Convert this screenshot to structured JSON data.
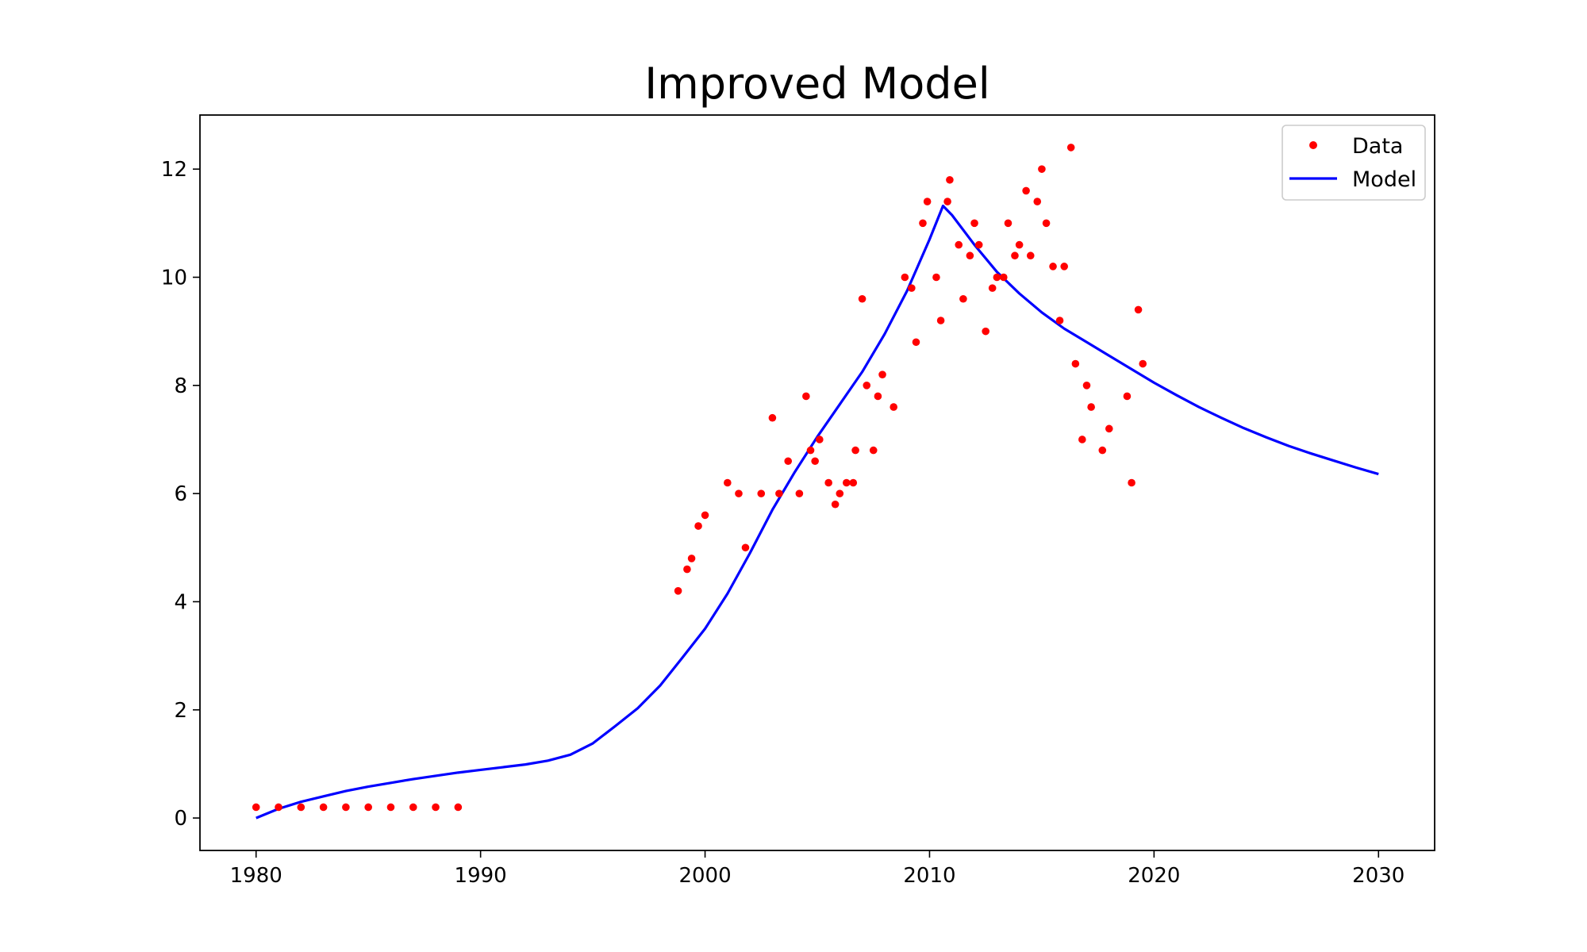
{
  "chart_data": {
    "type": "scatter",
    "title": "Improved Model",
    "xlabel": "",
    "ylabel": "",
    "xlim": [
      1977.5,
      2032.5
    ],
    "ylim": [
      -0.6,
      13.0
    ],
    "xticks": [
      1980,
      1990,
      2000,
      2010,
      2020,
      2030
    ],
    "yticks": [
      0,
      2,
      4,
      6,
      8,
      10,
      12
    ],
    "grid": false,
    "legend_position": "top-right",
    "colors": {
      "data": "#ff0000",
      "model": "#0000ff"
    },
    "series": [
      {
        "name": "Data",
        "kind": "scatter",
        "points": [
          [
            1980,
            0.2
          ],
          [
            1981,
            0.2
          ],
          [
            1982,
            0.2
          ],
          [
            1983,
            0.2
          ],
          [
            1984,
            0.2
          ],
          [
            1985,
            0.2
          ],
          [
            1986,
            0.2
          ],
          [
            1987,
            0.2
          ],
          [
            1988,
            0.2
          ],
          [
            1989,
            0.2
          ],
          [
            1998.8,
            4.2
          ],
          [
            1999.2,
            4.6
          ],
          [
            1999.4,
            4.8
          ],
          [
            1999.7,
            5.4
          ],
          [
            2000.0,
            5.6
          ],
          [
            2001.0,
            6.2
          ],
          [
            2001.5,
            6.0
          ],
          [
            2001.8,
            5.0
          ],
          [
            2002.5,
            6.0
          ],
          [
            2003.0,
            7.4
          ],
          [
            2003.3,
            6.0
          ],
          [
            2003.7,
            6.6
          ],
          [
            2004.2,
            6.0
          ],
          [
            2004.5,
            7.8
          ],
          [
            2004.7,
            6.8
          ],
          [
            2004.9,
            6.6
          ],
          [
            2005.1,
            7.0
          ],
          [
            2005.5,
            6.2
          ],
          [
            2005.8,
            5.8
          ],
          [
            2006.0,
            6.0
          ],
          [
            2006.3,
            6.2
          ],
          [
            2006.6,
            6.2
          ],
          [
            2006.7,
            6.8
          ],
          [
            2007.0,
            9.6
          ],
          [
            2007.2,
            8.0
          ],
          [
            2007.5,
            6.8
          ],
          [
            2007.7,
            7.8
          ],
          [
            2007.9,
            8.2
          ],
          [
            2008.4,
            7.6
          ],
          [
            2008.9,
            10.0
          ],
          [
            2009.2,
            9.8
          ],
          [
            2009.4,
            8.8
          ],
          [
            2009.7,
            11.0
          ],
          [
            2009.9,
            11.4
          ],
          [
            2010.3,
            10.0
          ],
          [
            2010.5,
            9.2
          ],
          [
            2010.8,
            11.4
          ],
          [
            2010.9,
            11.8
          ],
          [
            2011.3,
            10.6
          ],
          [
            2011.5,
            9.6
          ],
          [
            2011.8,
            10.4
          ],
          [
            2012.0,
            11.0
          ],
          [
            2012.2,
            10.6
          ],
          [
            2012.5,
            9.0
          ],
          [
            2012.8,
            9.8
          ],
          [
            2013.0,
            10.0
          ],
          [
            2013.3,
            10.0
          ],
          [
            2013.5,
            11.0
          ],
          [
            2013.8,
            10.4
          ],
          [
            2014.0,
            10.6
          ],
          [
            2014.3,
            11.6
          ],
          [
            2014.5,
            10.4
          ],
          [
            2014.8,
            11.4
          ],
          [
            2015.0,
            12.0
          ],
          [
            2015.2,
            11.0
          ],
          [
            2015.5,
            10.2
          ],
          [
            2015.8,
            9.2
          ],
          [
            2016.0,
            10.2
          ],
          [
            2016.3,
            12.4
          ],
          [
            2016.5,
            8.4
          ],
          [
            2016.8,
            7.0
          ],
          [
            2017.0,
            8.0
          ],
          [
            2017.2,
            7.6
          ],
          [
            2017.7,
            6.8
          ],
          [
            2018.0,
            7.2
          ],
          [
            2018.8,
            7.8
          ],
          [
            2019.0,
            6.2
          ],
          [
            2019.3,
            9.4
          ],
          [
            2019.5,
            8.4
          ]
        ]
      },
      {
        "name": "Model",
        "kind": "line",
        "points": [
          [
            1980,
            0.0
          ],
          [
            1981,
            0.17
          ],
          [
            1982,
            0.3
          ],
          [
            1983,
            0.4
          ],
          [
            1984,
            0.5
          ],
          [
            1985,
            0.58
          ],
          [
            1986,
            0.65
          ],
          [
            1987,
            0.72
          ],
          [
            1988,
            0.78
          ],
          [
            1989,
            0.84
          ],
          [
            1990,
            0.89
          ],
          [
            1991,
            0.94
          ],
          [
            1992,
            0.99
          ],
          [
            1993,
            1.06
          ],
          [
            1994,
            1.17
          ],
          [
            1995,
            1.38
          ],
          [
            1996,
            1.7
          ],
          [
            1997,
            2.03
          ],
          [
            1998,
            2.45
          ],
          [
            1999,
            2.97
          ],
          [
            2000,
            3.5
          ],
          [
            2001,
            4.15
          ],
          [
            2002,
            4.9
          ],
          [
            2003,
            5.7
          ],
          [
            2004,
            6.4
          ],
          [
            2005,
            7.05
          ],
          [
            2006,
            7.65
          ],
          [
            2007,
            8.25
          ],
          [
            2008,
            8.95
          ],
          [
            2009,
            9.75
          ],
          [
            2010,
            10.7
          ],
          [
            2010.6,
            11.32
          ],
          [
            2011,
            11.15
          ],
          [
            2012,
            10.6
          ],
          [
            2013,
            10.1
          ],
          [
            2014,
            9.7
          ],
          [
            2015,
            9.35
          ],
          [
            2016,
            9.05
          ],
          [
            2017,
            8.8
          ],
          [
            2018,
            8.55
          ],
          [
            2019,
            8.3
          ],
          [
            2020,
            8.05
          ],
          [
            2021,
            7.82
          ],
          [
            2022,
            7.6
          ],
          [
            2023,
            7.4
          ],
          [
            2024,
            7.21
          ],
          [
            2025,
            7.04
          ],
          [
            2026,
            6.88
          ],
          [
            2027,
            6.74
          ],
          [
            2028,
            6.61
          ],
          [
            2029,
            6.48
          ],
          [
            2030,
            6.36
          ]
        ]
      }
    ]
  }
}
